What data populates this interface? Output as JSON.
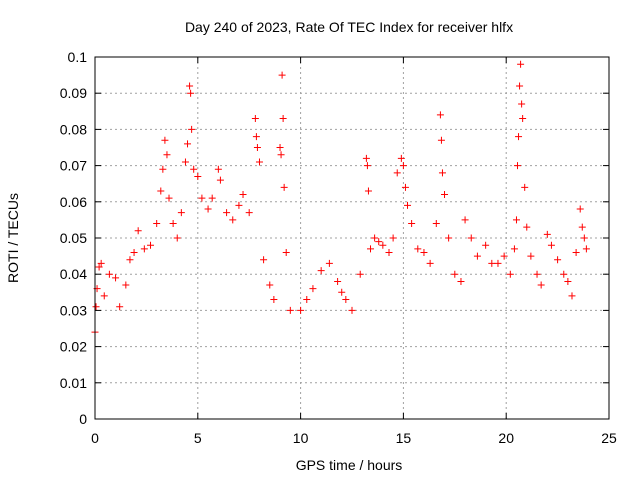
{
  "chart_data": {
    "type": "scatter",
    "title": "Day 240 of 2023, Rate Of TEC Index for receiver hlfx",
    "xlabel": "GPS time / hours",
    "ylabel": "ROTI / TECUs",
    "xlim": [
      0,
      25
    ],
    "ylim": [
      0,
      0.1
    ],
    "x_ticks": [
      "0",
      "5",
      "10",
      "15",
      "20",
      "25"
    ],
    "y_ticks": [
      "0",
      "0.01",
      "0.02",
      "0.03",
      "0.04",
      "0.05",
      "0.06",
      "0.07",
      "0.08",
      "0.09",
      "0.1"
    ],
    "grid": true,
    "marker": "+",
    "color": "#ff0000",
    "series": [
      {
        "points": [
          [
            0.0,
            0.024
          ],
          [
            0.05,
            0.031
          ],
          [
            0.1,
            0.036
          ],
          [
            0.2,
            0.042
          ],
          [
            0.3,
            0.043
          ],
          [
            0.45,
            0.034
          ],
          [
            0.7,
            0.04
          ],
          [
            1.0,
            0.039
          ],
          [
            1.2,
            0.031
          ],
          [
            1.5,
            0.037
          ],
          [
            1.7,
            0.044
          ],
          [
            1.9,
            0.046
          ],
          [
            2.1,
            0.052
          ],
          [
            2.4,
            0.047
          ],
          [
            2.7,
            0.048
          ],
          [
            3.0,
            0.054
          ],
          [
            3.2,
            0.063
          ],
          [
            3.3,
            0.069
          ],
          [
            3.4,
            0.077
          ],
          [
            3.5,
            0.073
          ],
          [
            3.6,
            0.061
          ],
          [
            3.8,
            0.054
          ],
          [
            4.0,
            0.05
          ],
          [
            4.2,
            0.057
          ],
          [
            4.4,
            0.071
          ],
          [
            4.5,
            0.076
          ],
          [
            4.6,
            0.092
          ],
          [
            4.65,
            0.09
          ],
          [
            4.7,
            0.08
          ],
          [
            4.8,
            0.069
          ],
          [
            5.0,
            0.067
          ],
          [
            5.2,
            0.061
          ],
          [
            5.5,
            0.058
          ],
          [
            5.7,
            0.061
          ],
          [
            6.0,
            0.069
          ],
          [
            6.1,
            0.066
          ],
          [
            6.4,
            0.057
          ],
          [
            6.7,
            0.055
          ],
          [
            7.0,
            0.059
          ],
          [
            7.2,
            0.062
          ],
          [
            7.5,
            0.057
          ],
          [
            7.8,
            0.083
          ],
          [
            7.85,
            0.078
          ],
          [
            7.9,
            0.075
          ],
          [
            8.0,
            0.071
          ],
          [
            8.2,
            0.044
          ],
          [
            8.5,
            0.037
          ],
          [
            8.7,
            0.033
          ],
          [
            9.0,
            0.075
          ],
          [
            9.05,
            0.073
          ],
          [
            9.1,
            0.095
          ],
          [
            9.15,
            0.083
          ],
          [
            9.2,
            0.064
          ],
          [
            9.3,
            0.046
          ],
          [
            9.5,
            0.03
          ],
          [
            10.0,
            0.03
          ],
          [
            10.3,
            0.033
          ],
          [
            10.6,
            0.036
          ],
          [
            11.0,
            0.041
          ],
          [
            11.4,
            0.043
          ],
          [
            11.8,
            0.038
          ],
          [
            12.0,
            0.035
          ],
          [
            12.2,
            0.033
          ],
          [
            12.5,
            0.03
          ],
          [
            12.9,
            0.04
          ],
          [
            13.2,
            0.072
          ],
          [
            13.25,
            0.07
          ],
          [
            13.3,
            0.063
          ],
          [
            13.4,
            0.047
          ],
          [
            13.6,
            0.05
          ],
          [
            13.8,
            0.049
          ],
          [
            14.0,
            0.048
          ],
          [
            14.3,
            0.046
          ],
          [
            14.5,
            0.05
          ],
          [
            14.7,
            0.068
          ],
          [
            14.9,
            0.072
          ],
          [
            15.0,
            0.07
          ],
          [
            15.1,
            0.064
          ],
          [
            15.2,
            0.059
          ],
          [
            15.4,
            0.054
          ],
          [
            15.7,
            0.047
          ],
          [
            16.0,
            0.046
          ],
          [
            16.3,
            0.043
          ],
          [
            16.6,
            0.054
          ],
          [
            16.8,
            0.084
          ],
          [
            16.85,
            0.077
          ],
          [
            16.9,
            0.068
          ],
          [
            17.0,
            0.062
          ],
          [
            17.2,
            0.05
          ],
          [
            17.5,
            0.04
          ],
          [
            17.8,
            0.038
          ],
          [
            18.0,
            0.055
          ],
          [
            18.3,
            0.05
          ],
          [
            18.6,
            0.045
          ],
          [
            19.0,
            0.048
          ],
          [
            19.3,
            0.043
          ],
          [
            19.6,
            0.043
          ],
          [
            19.9,
            0.045
          ],
          [
            20.2,
            0.04
          ],
          [
            20.4,
            0.047
          ],
          [
            20.5,
            0.055
          ],
          [
            20.55,
            0.07
          ],
          [
            20.6,
            0.078
          ],
          [
            20.65,
            0.092
          ],
          [
            20.7,
            0.098
          ],
          [
            20.75,
            0.087
          ],
          [
            20.8,
            0.083
          ],
          [
            20.9,
            0.064
          ],
          [
            21.0,
            0.053
          ],
          [
            21.2,
            0.045
          ],
          [
            21.5,
            0.04
          ],
          [
            21.7,
            0.037
          ],
          [
            22.0,
            0.051
          ],
          [
            22.2,
            0.048
          ],
          [
            22.5,
            0.044
          ],
          [
            22.8,
            0.04
          ],
          [
            23.0,
            0.038
          ],
          [
            23.2,
            0.034
          ],
          [
            23.4,
            0.046
          ],
          [
            23.6,
            0.058
          ],
          [
            23.7,
            0.053
          ],
          [
            23.8,
            0.05
          ],
          [
            23.9,
            0.047
          ]
        ]
      }
    ]
  }
}
